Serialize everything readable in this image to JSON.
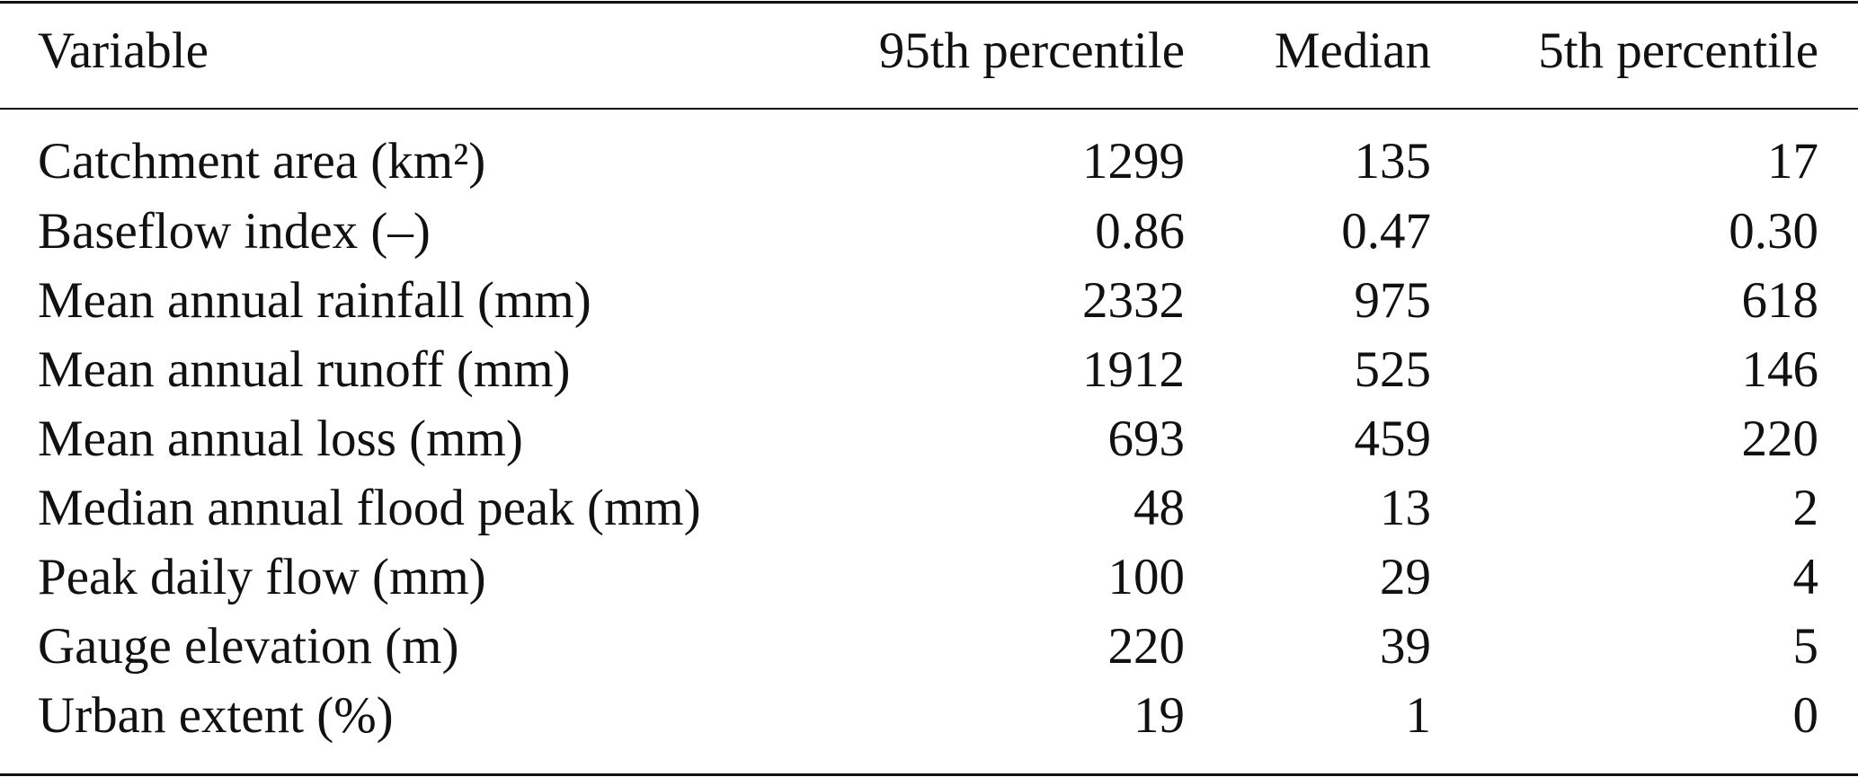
{
  "table": {
    "header": [
      "Variable",
      "95th percentile",
      "Median",
      "5th percentile"
    ],
    "rows": [
      [
        "Catchment area (km²)",
        "1299",
        "135",
        "17"
      ],
      [
        "Baseflow index (–)",
        "0.86",
        "0.47",
        "0.30"
      ],
      [
        "Mean annual rainfall (mm)",
        "2332",
        "975",
        "618"
      ],
      [
        "Mean annual runoff (mm)",
        "1912",
        "525",
        "146"
      ],
      [
        "Mean annual loss (mm)",
        "693",
        "459",
        "220"
      ],
      [
        "Median annual flood peak (mm)",
        "48",
        "13",
        "2"
      ],
      [
        "Peak daily flow (mm)",
        "100",
        "29",
        "4"
      ],
      [
        "Gauge elevation (m)",
        "220",
        "39",
        "5"
      ],
      [
        "Urban extent (%)",
        "19",
        "1",
        "0"
      ]
    ]
  }
}
